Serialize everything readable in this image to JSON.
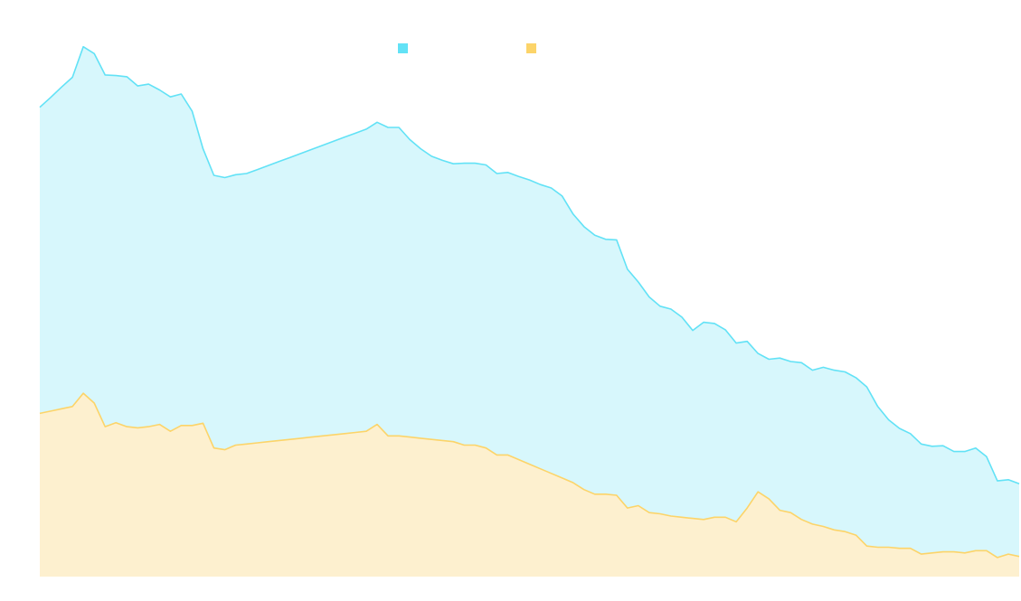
{
  "chart_data": {
    "type": "area",
    "stacked": true,
    "title": "",
    "xlabel": "",
    "ylabel": "",
    "grid": false,
    "legend_position": "top-center",
    "x_axis_visible": false,
    "y_axis_visible": false,
    "ylim": [
      0,
      100
    ],
    "x": [
      0,
      1,
      2,
      3,
      4,
      5,
      6,
      7,
      8,
      9,
      10,
      11,
      12,
      13,
      14,
      15,
      16,
      17,
      18,
      19,
      20,
      21,
      22,
      23,
      24,
      25,
      26,
      27,
      28,
      29,
      30,
      31,
      32,
      33,
      34,
      35,
      36,
      37,
      38,
      39,
      40,
      41,
      42,
      43,
      44,
      45,
      46,
      47,
      48,
      49,
      50,
      51,
      52,
      53,
      54,
      55,
      56,
      57,
      58,
      59,
      60,
      61,
      62,
      63,
      64,
      65,
      66,
      67,
      68,
      69,
      70,
      71,
      72,
      73,
      74,
      75,
      76,
      77,
      78,
      79,
      80,
      81,
      82,
      83,
      84,
      85,
      86,
      87,
      88,
      89,
      90
    ],
    "series": [
      {
        "color": "#fcd469",
        "fill": "#fdf0cf",
        "values": [
          28.3,
          28.7,
          29.1,
          29.5,
          31.8,
          30.1,
          26.0,
          26.7,
          26.0,
          25.8,
          26.0,
          26.4,
          25.2,
          26.2,
          26.2,
          26.6,
          22.3,
          22.0,
          22.8,
          23.0,
          23.2,
          23.4,
          23.6,
          23.8,
          24.0,
          24.2,
          24.4,
          24.6,
          24.8,
          25.0,
          25.2,
          26.4,
          24.4,
          24.4,
          24.2,
          24.0,
          23.8,
          23.6,
          23.4,
          22.8,
          22.8,
          22.3,
          21.1,
          21.1,
          20.3,
          19.5,
          18.7,
          17.9,
          17.1,
          16.3,
          15.1,
          14.3,
          14.3,
          14.1,
          11.9,
          12.3,
          11.1,
          10.9,
          10.5,
          10.3,
          10.1,
          9.9,
          10.3,
          10.3,
          9.5,
          11.9,
          14.7,
          13.5,
          11.5,
          11.1,
          9.9,
          9.1,
          8.7,
          8.1,
          7.8,
          7.2,
          5.3,
          5.1,
          5.1,
          4.9,
          4.9,
          3.9,
          4.1,
          4.3,
          4.3,
          4.1,
          4.5,
          4.5,
          3.3,
          3.9,
          3.5
        ]
      },
      {
        "color": "#62e2f6",
        "fill": "#d7f7fc",
        "values": [
          53.1,
          54.4,
          55.8,
          57.1,
          60.1,
          60.6,
          61.0,
          60.2,
          60.7,
          59.3,
          59.4,
          58.0,
          58.0,
          57.5,
          54.5,
          47.6,
          47.3,
          47.2,
          46.9,
          46.9,
          47.4,
          47.9,
          48.4,
          48.9,
          49.4,
          49.9,
          50.4,
          50.9,
          51.4,
          51.9,
          52.4,
          52.4,
          53.5,
          53.5,
          51.6,
          50.2,
          49.1,
          48.6,
          48.2,
          48.9,
          48.9,
          49.1,
          48.8,
          49.0,
          49.1,
          49.3,
          49.3,
          49.5,
          48.9,
          46.6,
          45.6,
          44.9,
          44.2,
          44.3,
          41.4,
          38.8,
          37.4,
          36.0,
          35.9,
          34.7,
          32.6,
          34.2,
          33.6,
          32.5,
          31.0,
          28.9,
          24.0,
          24.2,
          26.4,
          26.2,
          27.2,
          26.7,
          27.6,
          27.7,
          27.7,
          27.3,
          27.6,
          24.4,
          22.1,
          20.8,
          19.9,
          19.1,
          18.5,
          18.4,
          17.4,
          17.6,
          17.8,
          16.3,
          13.3,
          12.9,
          12.6
        ]
      }
    ]
  }
}
